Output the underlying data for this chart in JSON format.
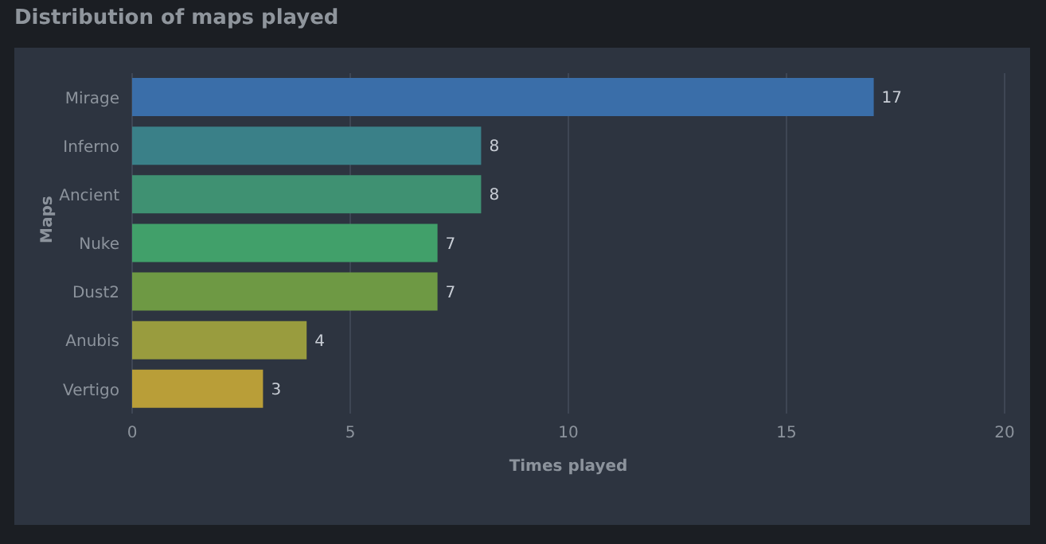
{
  "chart_data": {
    "type": "bar",
    "orientation": "horizontal",
    "title": "Distribution of maps played",
    "xlabel": "Times played",
    "ylabel": "Maps",
    "categories": [
      "Mirage",
      "Inferno",
      "Ancient",
      "Nuke",
      "Dust2",
      "Anubis",
      "Vertigo"
    ],
    "values": [
      17,
      8,
      8,
      7,
      7,
      4,
      3
    ],
    "colors": [
      "#3a6ea9",
      "#3a8088",
      "#3f9172",
      "#41a06a",
      "#6e9944",
      "#999c3e",
      "#b99e38"
    ],
    "xlim": [
      0,
      20
    ],
    "xticks": [
      0,
      5,
      10,
      15,
      20
    ],
    "grid": "x",
    "data_labels": true
  }
}
